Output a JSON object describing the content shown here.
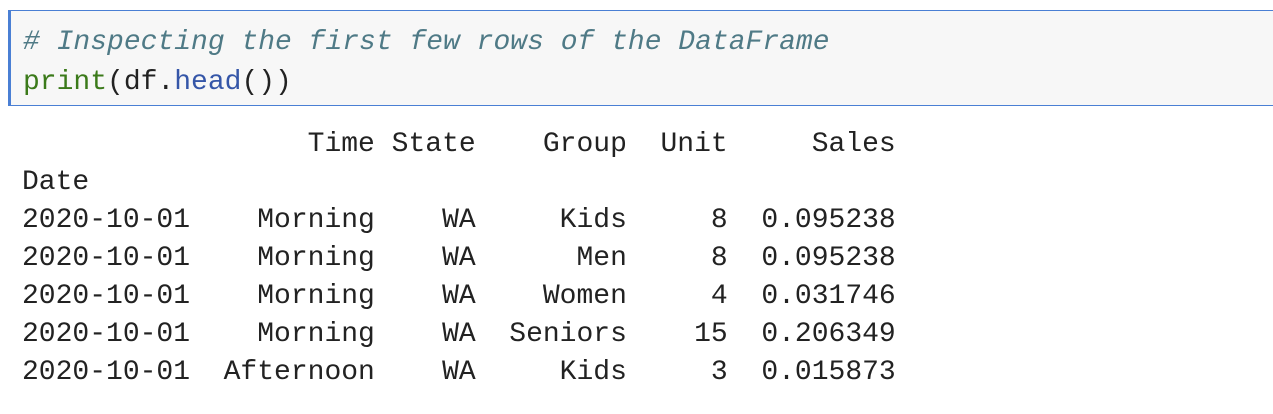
{
  "cell": {
    "comment": "# Inspecting the first few rows of the DataFrame",
    "code": [
      "print",
      "(df.",
      "head",
      "())"
    ]
  },
  "output": {
    "index_name": "Date",
    "columns": [
      "Time",
      "State",
      "Group",
      "Unit",
      "Sales"
    ],
    "rows": [
      [
        "2020-10-01",
        "Morning",
        "WA",
        "Kids",
        8,
        0.095238
      ],
      [
        "2020-10-01",
        "Morning",
        "WA",
        "Men",
        8,
        0.095238
      ],
      [
        "2020-10-01",
        "Morning",
        "WA",
        "Women",
        4,
        0.031746
      ],
      [
        "2020-10-01",
        "Morning",
        "WA",
        "Seniors",
        15,
        0.206349
      ],
      [
        "2020-10-01",
        "Afternoon",
        "WA",
        "Kids",
        3,
        0.015873
      ]
    ]
  }
}
